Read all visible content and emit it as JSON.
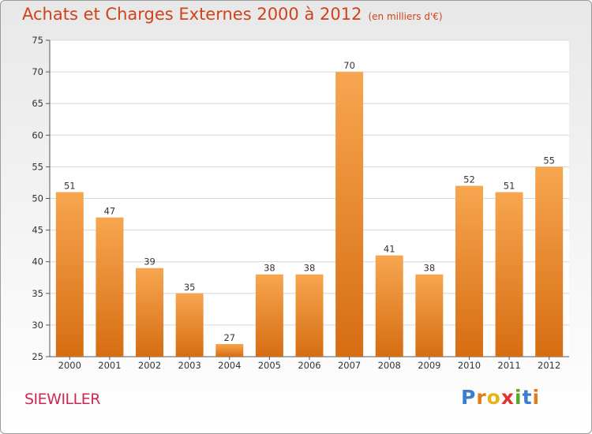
{
  "title": "Achats et Charges Externes 2000 à 2012",
  "subtitle": "(en milliers d'€)",
  "commune": "SIEWILLER",
  "logo": {
    "letters": [
      "P",
      "r",
      "o",
      "x",
      "i",
      "t",
      "i"
    ],
    "colors": [
      "#3a7ed1",
      "#e07b1a",
      "#e8b21a",
      "#d33",
      "#58a52f",
      "#3a7ed1",
      "#e07b1a"
    ]
  },
  "chart_data": {
    "type": "bar",
    "categories": [
      "2000",
      "2001",
      "2002",
      "2003",
      "2004",
      "2005",
      "2006",
      "2007",
      "2008",
      "2009",
      "2010",
      "2011",
      "2012"
    ],
    "values": [
      51,
      47,
      39,
      35,
      27,
      38,
      38,
      70,
      41,
      38,
      52,
      51,
      55
    ],
    "ylim": [
      25,
      75
    ],
    "yticks": [
      25,
      30,
      35,
      40,
      45,
      50,
      55,
      60,
      65,
      70,
      75
    ],
    "grid": true,
    "bar_color": "#e98a2e"
  }
}
